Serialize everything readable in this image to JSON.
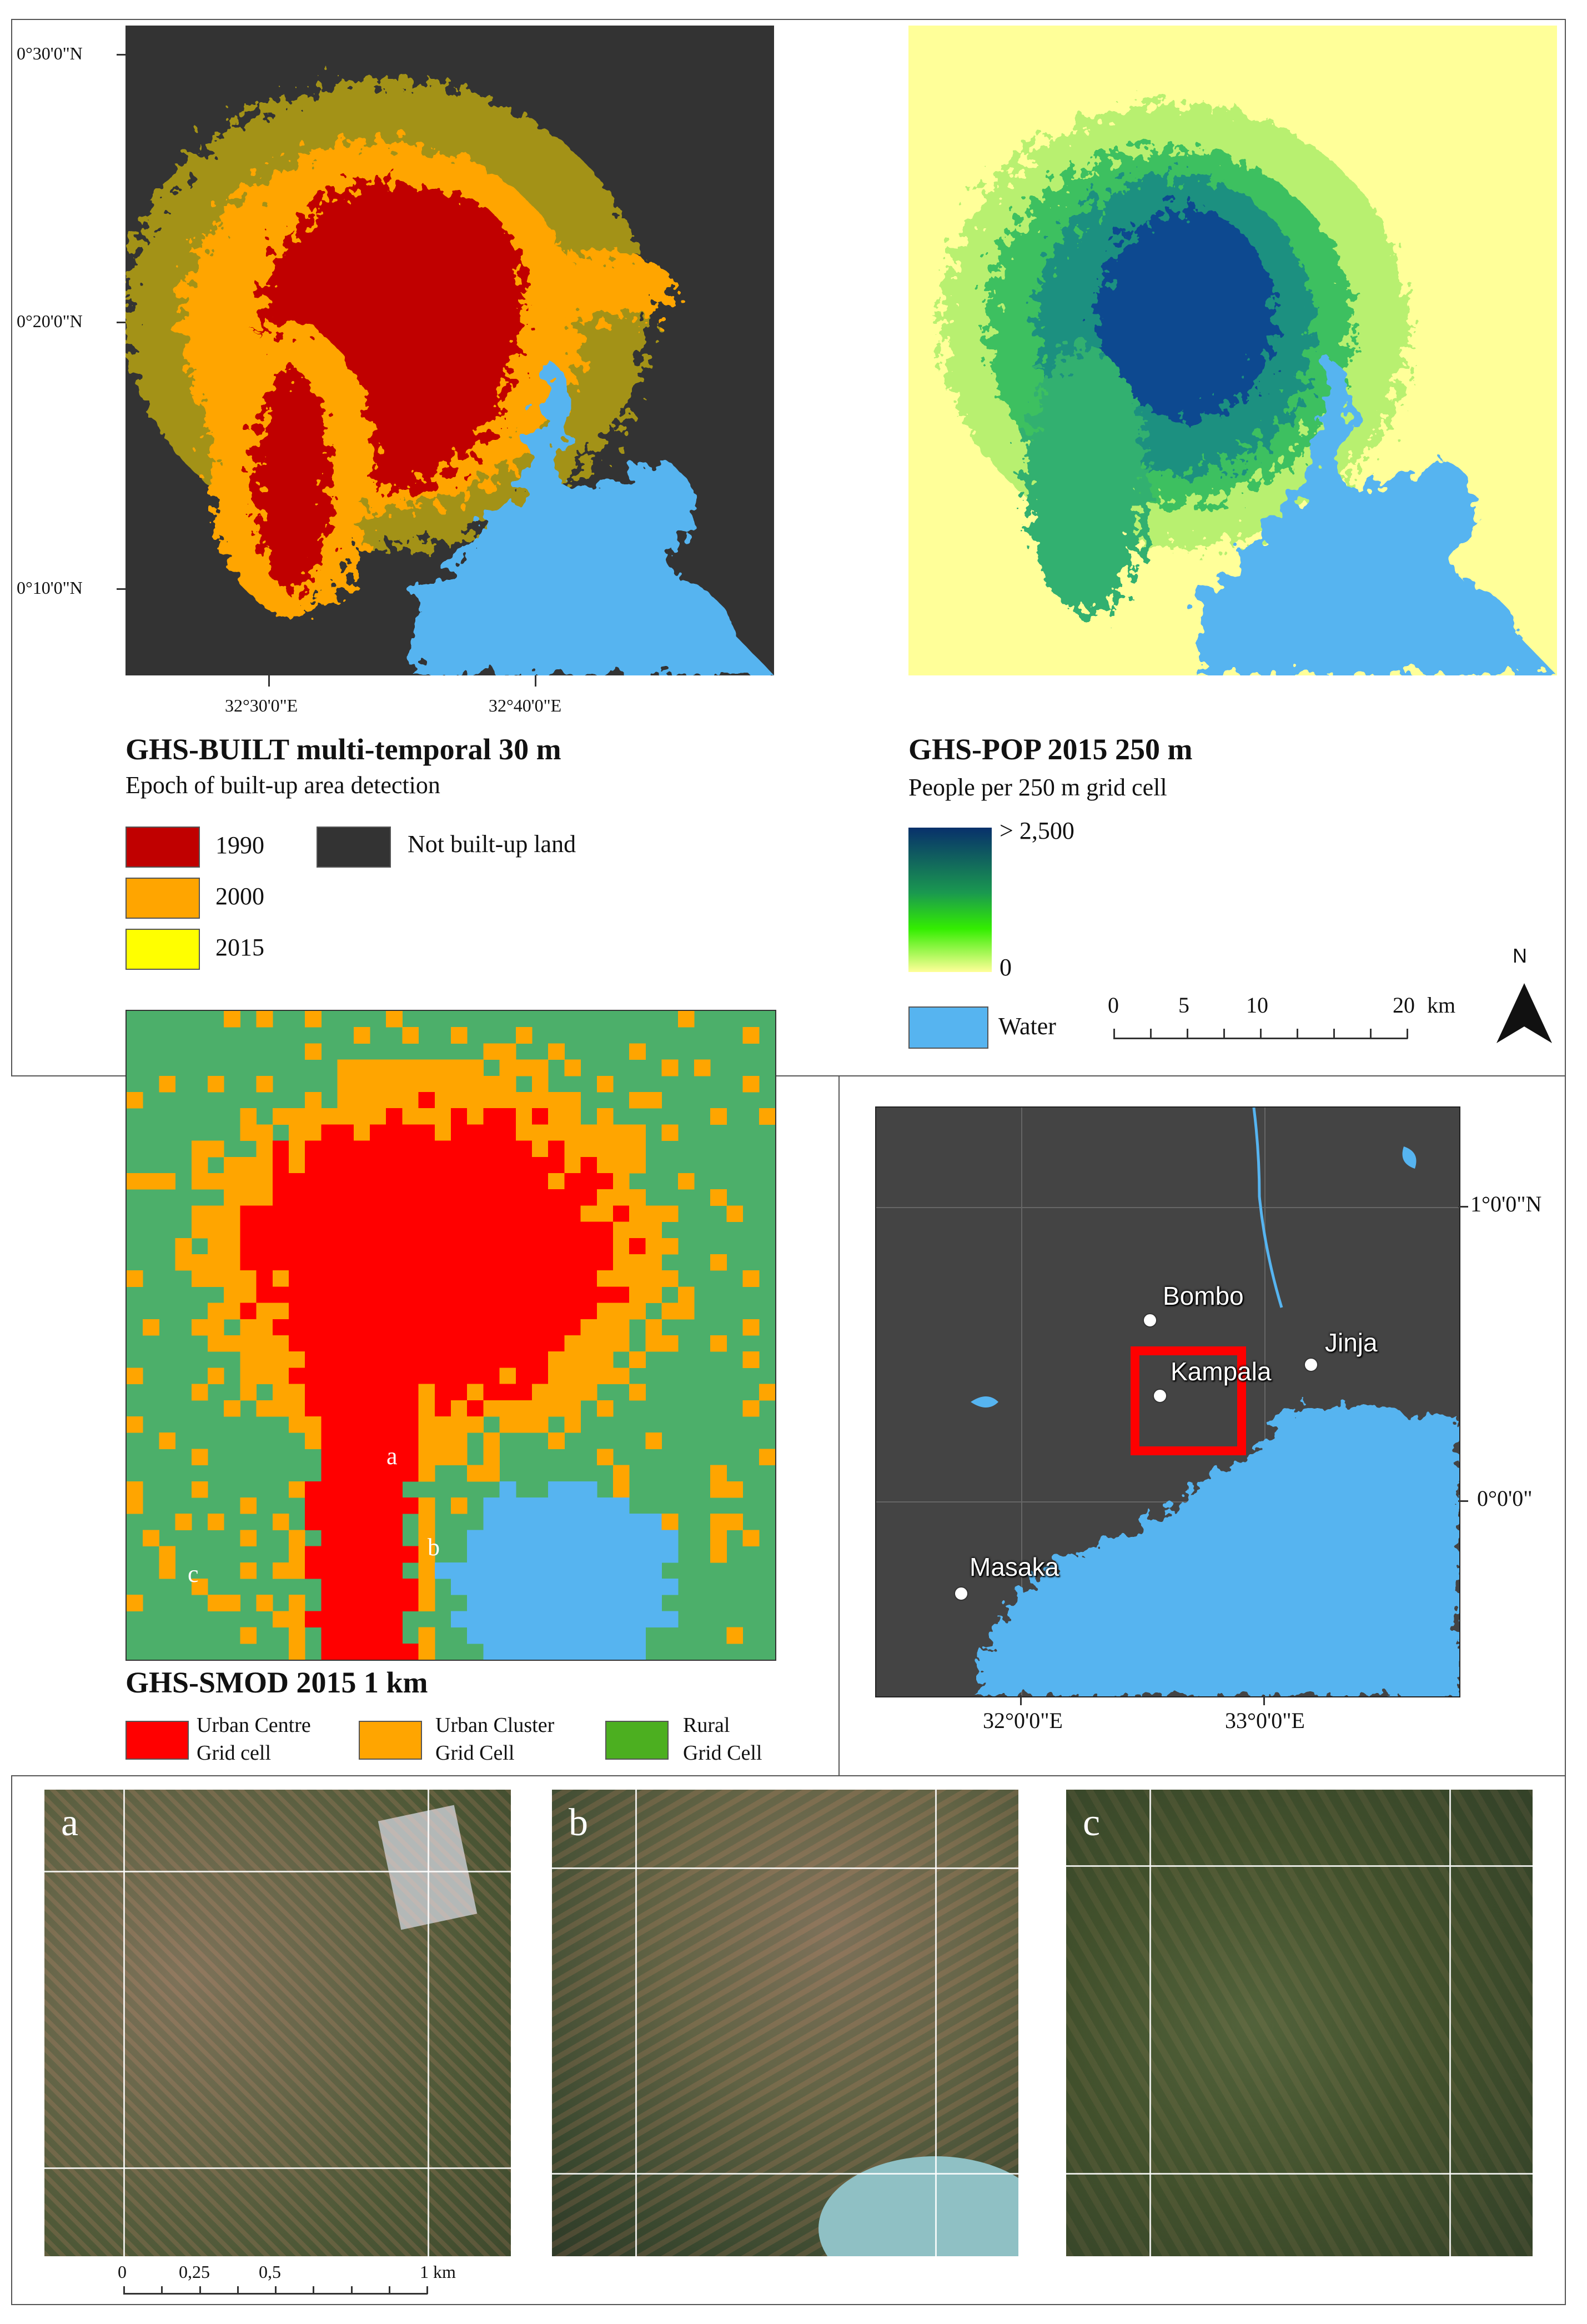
{
  "built": {
    "title": "GHS-BUILT multi-temporal 30 m",
    "subtitle": "Epoch of built-up area detection",
    "lat_ticks": [
      "0°30'0\"N",
      "0°20'0\"N",
      "0°10'0\"N"
    ],
    "lon_ticks": [
      "32°30'0\"E",
      "32°40'0\"E"
    ],
    "legend": [
      {
        "label": "1990",
        "color": "#c00000"
      },
      {
        "label": "2000",
        "color": "#ffa500"
      },
      {
        "label": "2015",
        "color": "#ffff00"
      },
      {
        "label": "Not built-up land",
        "color": "#333333"
      }
    ]
  },
  "pop": {
    "title": "GHS-POP 2015 250 m",
    "subtitle": "People per 250 m grid cell",
    "ramp_max": "> 2,500",
    "ramp_min": "0",
    "ramp_colors": [
      "#08306b",
      "#1a9850",
      "#33ee00",
      "#ffff99"
    ],
    "water_label": "Water",
    "water_color": "#56b4f0",
    "scale_ticks": [
      "0",
      "5",
      "10",
      "20"
    ],
    "scale_unit": "km",
    "north": "N"
  },
  "smod": {
    "title": "GHS-SMOD 2015 1 km",
    "point_labels": [
      "a",
      "b",
      "c"
    ],
    "legend": [
      {
        "line1": "Urban Centre",
        "line2": "Grid cell",
        "color": "#ff0000"
      },
      {
        "line1": "Urban Cluster",
        "line2": "Grid Cell",
        "color": "#ffa500"
      },
      {
        "line1": "Rural",
        "line2": "Grid Cell",
        "color": "#4caf20"
      }
    ],
    "colors": {
      "rural": "#4caf6a",
      "centre": "#ff0000",
      "cluster": "#ffa500",
      "water": "#56b4f0"
    }
  },
  "overview": {
    "lat_ticks": [
      "1°0'0\"N",
      "0°0'0\""
    ],
    "lon_ticks": [
      "32°0'0\"E",
      "33°0'0\"E"
    ],
    "cities": [
      "Bombo",
      "Jinja",
      "Kampala",
      "Masaka"
    ],
    "land_color": "#444444",
    "water_color": "#56b4f0",
    "box_color": "#ff0000"
  },
  "photos": {
    "labels": [
      "a",
      "b",
      "c"
    ],
    "scale_ticks": [
      "0",
      "0,25",
      "0,5",
      "1 km"
    ]
  }
}
